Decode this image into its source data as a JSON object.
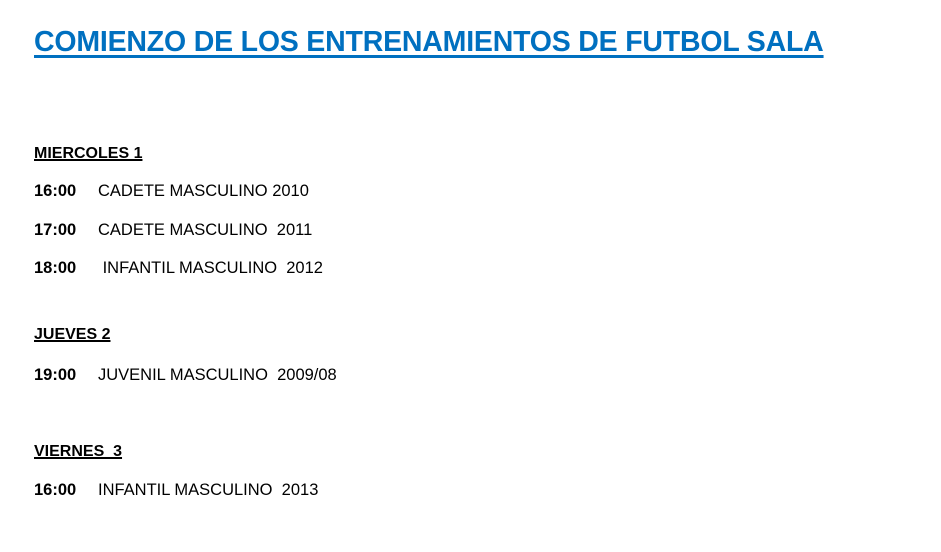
{
  "title": "COMIENZO DE LOS ENTRENAMIENTOS DE FUTBOL SALA",
  "title_color": "#0070c0",
  "days": [
    {
      "label": "MIERCOLES 1",
      "sessions": [
        {
          "time": "16:00",
          "team": "CADETE MASCULINO 2010"
        },
        {
          "time": "17:00",
          "team": "CADETE MASCULINO  2011"
        },
        {
          "time": "18:00",
          "team": " INFANTIL MASCULINO  2012"
        }
      ]
    },
    {
      "label": "JUEVES 2",
      "sessions": [
        {
          "time": "19:00",
          "team": "JUVENIL MASCULINO  2009/08"
        }
      ]
    },
    {
      "label": "VIERNES  3",
      "sessions": [
        {
          "time": "16:00",
          "team": "INFANTIL MASCULINO  2013"
        }
      ]
    }
  ]
}
